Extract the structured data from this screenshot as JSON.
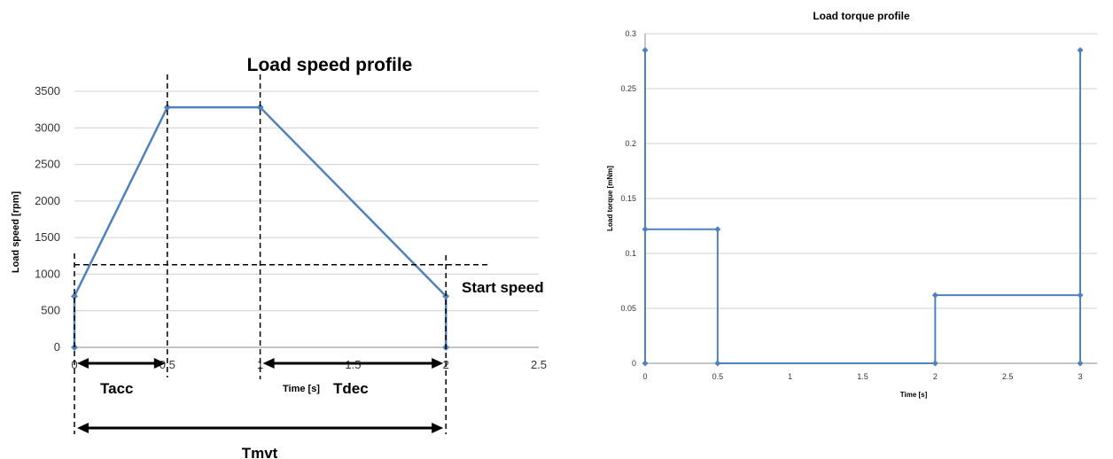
{
  "chart_data": [
    {
      "type": "line",
      "title": "Load speed profile",
      "xlabel": "Time [s]",
      "ylabel": "Load speed [rpm]",
      "xlim": [
        0,
        2.5
      ],
      "ylim": [
        0,
        3500
      ],
      "x_ticks": [
        "0",
        "0.5",
        "1",
        "1.5",
        "2",
        "2.5"
      ],
      "y_ticks": [
        "0",
        "500",
        "1000",
        "1500",
        "2000",
        "2500",
        "3000",
        "3500"
      ],
      "grid": "horizontal",
      "series": [
        {
          "x": [
            0,
            0,
            0.5,
            1,
            2,
            2
          ],
          "y": [
            0,
            700,
            3280,
            3280,
            700,
            0
          ]
        }
      ],
      "start_speed_level": 1130,
      "annotations": {
        "start_speed": "Start speed",
        "tacc": "Tacc",
        "tdec": "Tdec",
        "tmvt": "Tmvt"
      },
      "colors": {
        "series": "#4f81bd",
        "grid": "#d0d0d0",
        "axis": "#888888",
        "annotation": "#000000"
      }
    },
    {
      "type": "line",
      "title": "Load torque profile",
      "xlabel": "Time [s]",
      "ylabel": "Load torque [mNm]",
      "xlim": [
        0,
        3
      ],
      "ylim": [
        0,
        0.3
      ],
      "x_ticks": [
        "0",
        "0.5",
        "1",
        "1.5",
        "2",
        "2.5",
        "3"
      ],
      "y_ticks": [
        "0",
        "0.05",
        "0.1",
        "0.15",
        "0.2",
        "0.25",
        "0.3"
      ],
      "grid": "horizontal",
      "series": [
        {
          "x": [
            0,
            0,
            0,
            0.5,
            0.5,
            2,
            2,
            3,
            3,
            3
          ],
          "y": [
            0.285,
            0,
            0.122,
            0.122,
            0,
            0,
            0.062,
            0.062,
            0,
            0.285
          ]
        }
      ],
      "colors": {
        "series": "#4f81bd",
        "grid": "#d0d0d0",
        "axis": "#888888"
      }
    }
  ]
}
